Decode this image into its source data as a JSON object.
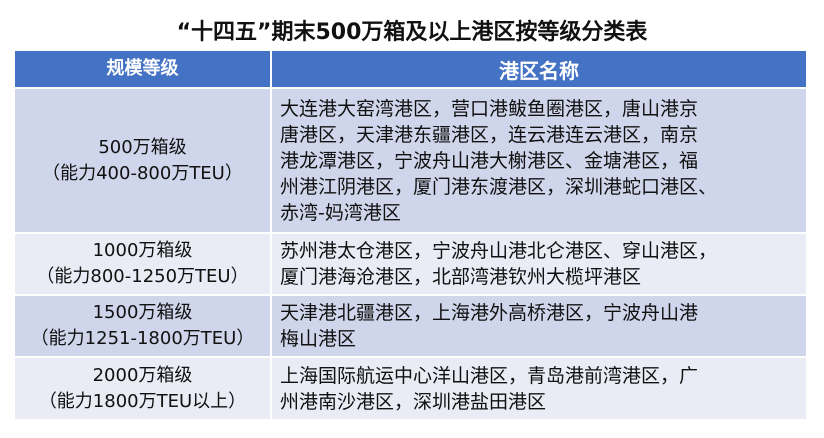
{
  "title": "“十四五”期末500万箱及以上港区按等级分类表",
  "colors": {
    "header_bg": "#4472C4",
    "row_dark": "#CFD5EA",
    "row_light": "#E9EBF5"
  },
  "headers": [
    "规模等级",
    "港区名称"
  ],
  "rows": [
    {
      "level": "500万箱级",
      "capacity": "（能力400-800万TEU）",
      "ports": [
        "大连港大窑湾港区，营口港鲅鱼圈港区，唐山港京",
        "唐港区，天津港东疆港区，连云港连云港区，南京",
        "港龙潭港区，宁波舟山港大榭港区、金塘港区，福",
        "州港江阴港区，厦门港东渡港区，深圳港蛇口港区、",
        "赤湾-妈湾港区"
      ]
    },
    {
      "level": "1000万箱级",
      "capacity": "（能力800-1250万TEU）",
      "ports": [
        "苏州港太仓港区，宁波舟山港北仑港区、穿山港区，",
        "厦门港海沧港区，北部湾港钦州大榄坪港区"
      ]
    },
    {
      "level": "1500万箱级",
      "capacity": "（能力1251-1800万TEU）",
      "ports": [
        "天津港北疆港区，上海港外高桥港区，宁波舟山港",
        "梅山港区"
      ]
    },
    {
      "level": "2000万箱级",
      "capacity": "（能力1800万TEU以上）",
      "ports": [
        "上海国际航运中心洋山港区，青岛港前湾港区，广",
        "州港南沙港区，深圳港盐田港区"
      ]
    }
  ]
}
